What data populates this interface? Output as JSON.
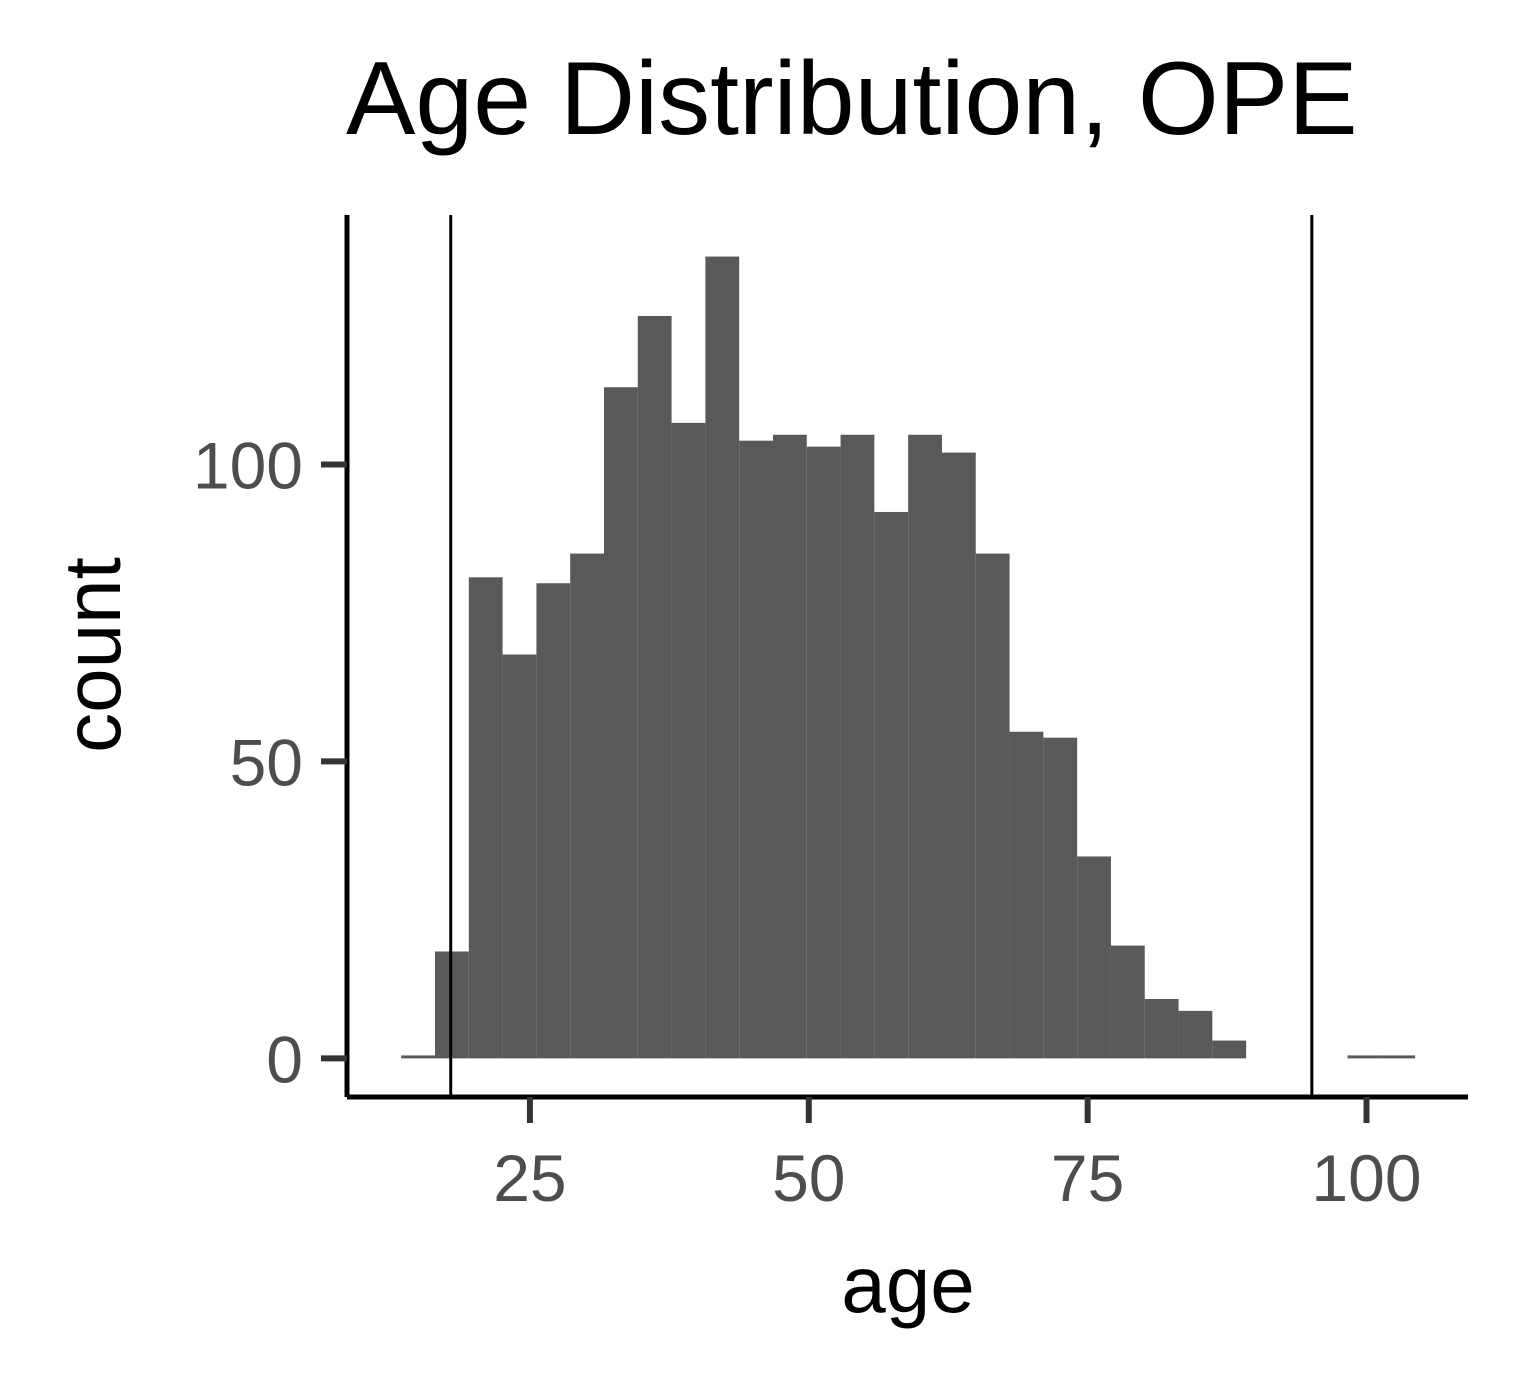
{
  "chart_data": {
    "type": "bar",
    "title": "Age Distribution, OPE",
    "xlabel": "age",
    "ylabel": "count",
    "xlim": [
      8.6,
      109.1
    ],
    "ylim": [
      -6.5,
      142
    ],
    "x_ticks": [
      25,
      50,
      75,
      100
    ],
    "y_ticks": [
      0,
      50,
      100
    ],
    "bin_width": 3.03,
    "bins": [
      {
        "x0": 13.46,
        "count": 0.5
      },
      {
        "x0": 16.49,
        "count": 18
      },
      {
        "x0": 19.52,
        "count": 81
      },
      {
        "x0": 22.55,
        "count": 68
      },
      {
        "x0": 25.58,
        "count": 80
      },
      {
        "x0": 28.61,
        "count": 85
      },
      {
        "x0": 31.64,
        "count": 113
      },
      {
        "x0": 34.67,
        "count": 125
      },
      {
        "x0": 37.7,
        "count": 107
      },
      {
        "x0": 40.73,
        "count": 135
      },
      {
        "x0": 43.76,
        "count": 104
      },
      {
        "x0": 46.79,
        "count": 105
      },
      {
        "x0": 49.82,
        "count": 103
      },
      {
        "x0": 52.85,
        "count": 105
      },
      {
        "x0": 55.88,
        "count": 92
      },
      {
        "x0": 58.91,
        "count": 105
      },
      {
        "x0": 61.94,
        "count": 102
      },
      {
        "x0": 64.97,
        "count": 85
      },
      {
        "x0": 68.0,
        "count": 55
      },
      {
        "x0": 71.03,
        "count": 54
      },
      {
        "x0": 74.06,
        "count": 34
      },
      {
        "x0": 77.09,
        "count": 19
      },
      {
        "x0": 80.12,
        "count": 10
      },
      {
        "x0": 83.15,
        "count": 8
      },
      {
        "x0": 86.18,
        "count": 3
      },
      {
        "x0": 89.21,
        "count": 0
      },
      {
        "x0": 92.24,
        "count": 0
      },
      {
        "x0": 95.27,
        "count": 0
      },
      {
        "x0": 98.3,
        "count": 0.5
      },
      {
        "x0": 101.33,
        "count": 0.5
      }
    ],
    "vlines": [
      17.9,
      95.1
    ],
    "bar_color": "#595959",
    "grid": false,
    "legend": "none"
  }
}
